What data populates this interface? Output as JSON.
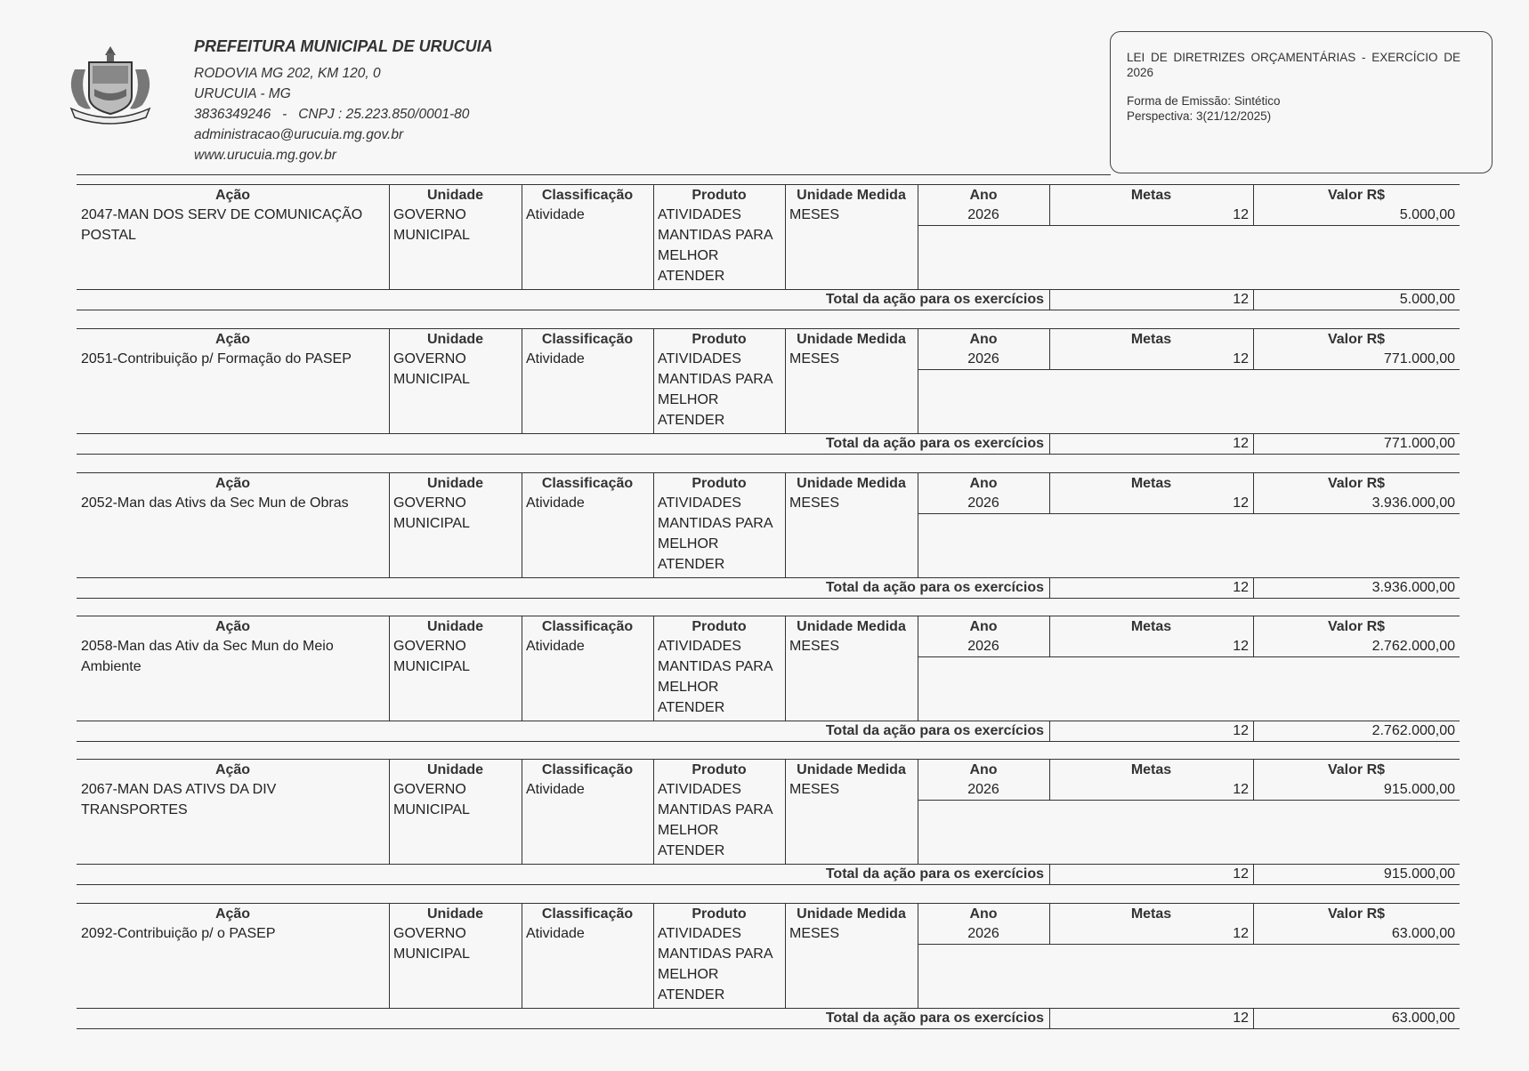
{
  "header": {
    "org_name": "PREFEITURA MUNICIPAL DE URUCUIA",
    "address": "RODOVIA MG 202, KM 120, 0",
    "city": "URUCUIA - MG",
    "phone_cnpj": "3836349246   -   CNPJ : 25.223.850/0001-80",
    "email": "administracao@urucuia.mg.gov.br",
    "website": "www.urucuia.mg.gov.br",
    "logo_text": "URUCUIA - MG",
    "logo_icon": "municipal-coat-of-arms"
  },
  "infobox": {
    "title": "LEI DE DIRETRIZES ORÇAMENTÁRIAS - EXERCÍCIO DE 2026",
    "forma_emissao": "Forma de Emissão: Sintético",
    "perspectiva": "Perspectiva: 3(21/12/2025)"
  },
  "columns": [
    "Ação",
    "Unidade",
    "Classificação",
    "Produto",
    "Unidade Medida",
    "Ano",
    "Metas",
    "Valor R$"
  ],
  "total_label": "Total da ação para os exercícios",
  "actions": [
    {
      "acao": "2047-MAN DOS SERV DE COMUNICAÇÃO POSTAL",
      "unidade": "GOVERNO MUNICIPAL",
      "classificacao": "Atividade",
      "produto": "ATIVIDADES MANTIDAS PARA MELHOR ATENDER",
      "unidade_medida": "MESES",
      "ano": "2026",
      "metas": "12",
      "valor": "5.000,00",
      "total_metas": "12",
      "total_valor": "5.000,00"
    },
    {
      "acao": "2051-Contribuição p/ Formação do PASEP",
      "unidade": "GOVERNO MUNICIPAL",
      "classificacao": "Atividade",
      "produto": "ATIVIDADES MANTIDAS PARA MELHOR ATENDER",
      "unidade_medida": "MESES",
      "ano": "2026",
      "metas": "12",
      "valor": "771.000,00",
      "total_metas": "12",
      "total_valor": "771.000,00"
    },
    {
      "acao": "2052-Man das Ativs da Sec Mun de Obras",
      "unidade": "GOVERNO MUNICIPAL",
      "classificacao": "Atividade",
      "produto": "ATIVIDADES MANTIDAS PARA MELHOR ATENDER",
      "unidade_medida": "MESES",
      "ano": "2026",
      "metas": "12",
      "valor": "3.936.000,00",
      "total_metas": "12",
      "total_valor": "3.936.000,00"
    },
    {
      "acao": "2058-Man das Ativ da Sec Mun do Meio Ambiente",
      "unidade": "GOVERNO MUNICIPAL",
      "classificacao": "Atividade",
      "produto": "ATIVIDADES MANTIDAS PARA MELHOR ATENDER",
      "unidade_medida": "MESES",
      "ano": "2026",
      "metas": "12",
      "valor": "2.762.000,00",
      "total_metas": "12",
      "total_valor": "2.762.000,00"
    },
    {
      "acao": "2067-MAN DAS ATIVS DA DIV TRANSPORTES",
      "unidade": "GOVERNO MUNICIPAL",
      "classificacao": "Atividade",
      "produto": "ATIVIDADES MANTIDAS PARA MELHOR ATENDER",
      "unidade_medida": "MESES",
      "ano": "2026",
      "metas": "12",
      "valor": "915.000,00",
      "total_metas": "12",
      "total_valor": "915.000,00"
    },
    {
      "acao": "2092-Contribuição p/ o PASEP",
      "unidade": "GOVERNO MUNICIPAL",
      "classificacao": "Atividade",
      "produto": "ATIVIDADES MANTIDAS PARA MELHOR ATENDER",
      "unidade_medida": "MESES",
      "ano": "2026",
      "metas": "12",
      "valor": "63.000,00",
      "total_metas": "12",
      "total_valor": "63.000,00"
    }
  ]
}
